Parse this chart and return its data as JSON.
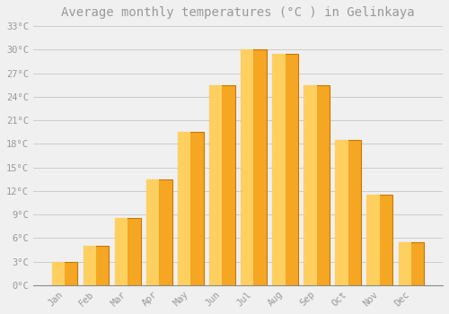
{
  "title": "Average monthly temperatures (°C ) in Gelinkaya",
  "months": [
    "Jan",
    "Feb",
    "Mar",
    "Apr",
    "May",
    "Jun",
    "Jul",
    "Aug",
    "Sep",
    "Oct",
    "Nov",
    "Dec"
  ],
  "values": [
    3.0,
    5.0,
    8.5,
    13.5,
    19.5,
    25.5,
    30.0,
    29.5,
    25.5,
    18.5,
    11.5,
    5.5
  ],
  "bar_color_outer": "#F5A623",
  "bar_color_inner": "#FFD060",
  "bar_edge_color": "#C87800",
  "background_color": "#F0F0F0",
  "grid_color": "#CCCCCC",
  "ylim": [
    0,
    33
  ],
  "yticks": [
    0,
    3,
    6,
    9,
    12,
    15,
    18,
    21,
    24,
    27,
    30,
    33
  ],
  "ytick_labels": [
    "0°C",
    "3°C",
    "6°C",
    "9°C",
    "12°C",
    "15°C",
    "18°C",
    "21°C",
    "24°C",
    "27°C",
    "30°C",
    "33°C"
  ],
  "title_fontsize": 10,
  "font_color": "#999999",
  "bar_width": 0.82
}
